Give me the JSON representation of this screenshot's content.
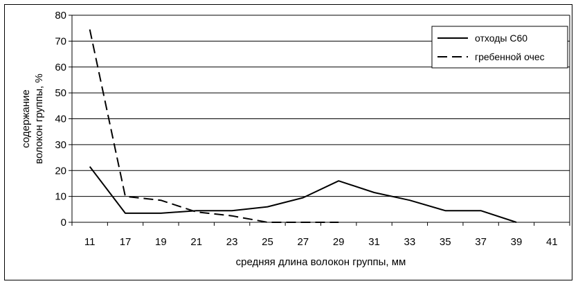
{
  "chart_data": {
    "type": "line",
    "categories": [
      "11",
      "17",
      "19",
      "21",
      "23",
      "25",
      "27",
      "29",
      "31",
      "33",
      "35",
      "37",
      "39",
      "41"
    ],
    "series": [
      {
        "name": "отходы С60",
        "style": "solid",
        "color": "#000000",
        "values": [
          21.5,
          3.5,
          3.5,
          4.5,
          4.5,
          6.0,
          9.5,
          16.0,
          11.5,
          8.5,
          4.5,
          4.5,
          0,
          null
        ]
      },
      {
        "name": "гребенной очес",
        "style": "dashed",
        "color": "#000000",
        "values": [
          74.5,
          10.0,
          8.5,
          4.0,
          2.5,
          0,
          0,
          0,
          null,
          null,
          null,
          null,
          null,
          null
        ]
      }
    ],
    "ylim": [
      0,
      80
    ],
    "yticks": [
      "0",
      "10",
      "20",
      "30",
      "40",
      "50",
      "60",
      "70",
      "80"
    ],
    "ylabel_line1": "содержание",
    "ylabel_line2": "волокон группы, %",
    "xlabel": "средняя длина волокон группы, мм",
    "grid": "horizontal",
    "legend_position": "top-right"
  }
}
